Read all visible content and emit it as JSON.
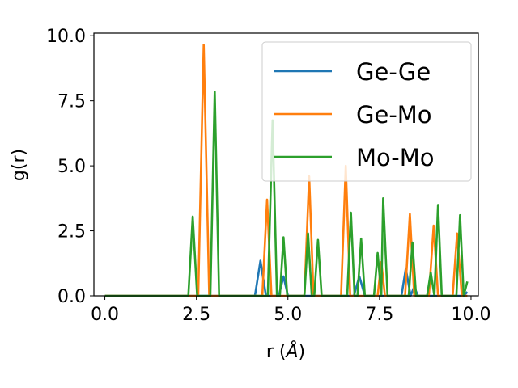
{
  "chart_data": {
    "type": "line",
    "title": "",
    "xlabel_main": "r (",
    "xlabel_unit": "Å",
    "xlabel_close": ")",
    "ylabel": "g(r)",
    "xlim": [
      -0.3,
      10.2
    ],
    "ylim": [
      0,
      10.1
    ],
    "xticks": [
      "0.0",
      "2.5",
      "5.0",
      "7.5",
      "10.0"
    ],
    "yticks": [
      "0.0",
      "2.5",
      "5.0",
      "7.5",
      "10.0"
    ],
    "grid": false,
    "legend_position": "top-right",
    "series": [
      {
        "name": "Ge-Ge",
        "color": "#1f77b4",
        "points": [
          [
            0,
            0
          ],
          [
            4.1,
            0
          ],
          [
            4.25,
            1.35
          ],
          [
            4.4,
            0
          ],
          [
            4.75,
            0
          ],
          [
            4.88,
            0.75
          ],
          [
            5.0,
            0
          ],
          [
            6.8,
            0
          ],
          [
            6.95,
            0.75
          ],
          [
            7.1,
            0
          ],
          [
            8.1,
            0
          ],
          [
            8.22,
            1.05
          ],
          [
            8.35,
            0
          ],
          [
            8.45,
            0.35
          ],
          [
            8.55,
            0
          ],
          [
            9.8,
            0
          ],
          [
            9.9,
            0.15
          ]
        ]
      },
      {
        "name": "Ge-Mo",
        "color": "#ff7f0e",
        "points": [
          [
            0,
            0
          ],
          [
            2.55,
            0
          ],
          [
            2.7,
            9.65
          ],
          [
            2.85,
            0
          ],
          [
            4.3,
            0
          ],
          [
            4.43,
            3.7
          ],
          [
            4.55,
            0
          ],
          [
            5.45,
            0
          ],
          [
            5.58,
            4.6
          ],
          [
            5.7,
            0
          ],
          [
            6.45,
            0
          ],
          [
            6.58,
            5.0
          ],
          [
            6.7,
            0
          ],
          [
            7.45,
            0
          ],
          [
            7.55,
            1.3
          ],
          [
            7.65,
            0
          ],
          [
            8.2,
            0
          ],
          [
            8.33,
            3.15
          ],
          [
            8.45,
            0
          ],
          [
            8.85,
            0
          ],
          [
            8.98,
            2.7
          ],
          [
            9.1,
            0
          ],
          [
            9.5,
            0
          ],
          [
            9.62,
            2.4
          ],
          [
            9.75,
            0
          ],
          [
            9.9,
            0
          ]
        ]
      },
      {
        "name": "Mo-Mo",
        "color": "#2ca02c",
        "points": [
          [
            0,
            0
          ],
          [
            2.28,
            0
          ],
          [
            2.4,
            3.05
          ],
          [
            2.52,
            0
          ],
          [
            2.88,
            0
          ],
          [
            3.0,
            7.85
          ],
          [
            3.12,
            0
          ],
          [
            4.45,
            0
          ],
          [
            4.58,
            6.75
          ],
          [
            4.7,
            0
          ],
          [
            4.78,
            0
          ],
          [
            4.88,
            2.25
          ],
          [
            4.98,
            0
          ],
          [
            5.45,
            0
          ],
          [
            5.55,
            2.4
          ],
          [
            5.65,
            0
          ],
          [
            5.72,
            0
          ],
          [
            5.82,
            2.15
          ],
          [
            5.92,
            0
          ],
          [
            6.62,
            0
          ],
          [
            6.72,
            3.2
          ],
          [
            6.82,
            0
          ],
          [
            6.9,
            0
          ],
          [
            7.0,
            2.2
          ],
          [
            7.1,
            0
          ],
          [
            7.35,
            0
          ],
          [
            7.45,
            1.65
          ],
          [
            7.55,
            0
          ],
          [
            7.6,
            3.75
          ],
          [
            7.72,
            0
          ],
          [
            8.3,
            0
          ],
          [
            8.4,
            2.05
          ],
          [
            8.5,
            0
          ],
          [
            8.8,
            0
          ],
          [
            8.9,
            0.9
          ],
          [
            9.0,
            0
          ],
          [
            9.1,
            3.5
          ],
          [
            9.2,
            0
          ],
          [
            9.6,
            0
          ],
          [
            9.7,
            3.1
          ],
          [
            9.8,
            0
          ],
          [
            9.9,
            0.55
          ]
        ]
      }
    ]
  }
}
